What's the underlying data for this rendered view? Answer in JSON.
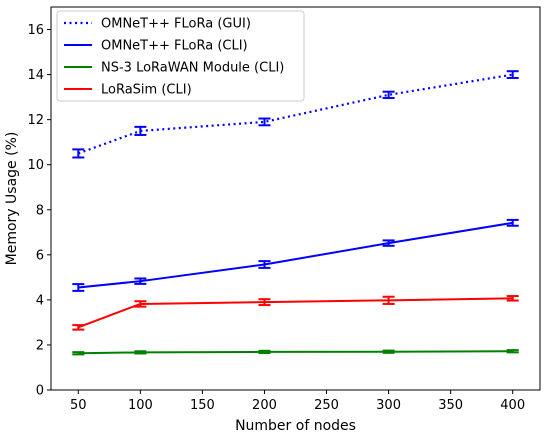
{
  "chart_data": {
    "type": "line",
    "xlabel": "Number of nodes",
    "ylabel": "Memory Usage (%)",
    "xlim": [
      28,
      422
    ],
    "ylim": [
      0,
      17
    ],
    "xticks": [
      50,
      100,
      150,
      200,
      250,
      300,
      350,
      400
    ],
    "yticks": [
      0,
      2,
      4,
      6,
      8,
      10,
      12,
      14,
      16
    ],
    "grid": false,
    "legend_position": "top-left",
    "x": [
      50,
      100,
      200,
      300,
      400
    ],
    "series": [
      {
        "name": "OMNeT++ FLoRa (GUI)",
        "color": "#0000ff",
        "style": "dotted",
        "values": [
          10.5,
          11.5,
          11.9,
          13.1,
          14.0
        ],
        "errors": [
          0.18,
          0.18,
          0.15,
          0.14,
          0.15
        ]
      },
      {
        "name": "OMNeT++ FLoRa (CLI)",
        "color": "#0000ff",
        "style": "solid",
        "values": [
          4.55,
          4.83,
          5.57,
          6.52,
          7.42
        ],
        "errors": [
          0.15,
          0.12,
          0.15,
          0.12,
          0.13
        ]
      },
      {
        "name": "NS-3 LoRaWAN Module (CLI)",
        "color": "#008000",
        "style": "solid",
        "values": [
          1.63,
          1.67,
          1.69,
          1.7,
          1.72
        ],
        "errors": [
          0.05,
          0.05,
          0.05,
          0.05,
          0.05
        ]
      },
      {
        "name": "LoRaSim (CLI)",
        "color": "#ff0000",
        "style": "solid",
        "values": [
          2.78,
          3.82,
          3.9,
          3.98,
          4.07
        ],
        "errors": [
          0.1,
          0.12,
          0.13,
          0.16,
          0.1
        ]
      }
    ]
  }
}
